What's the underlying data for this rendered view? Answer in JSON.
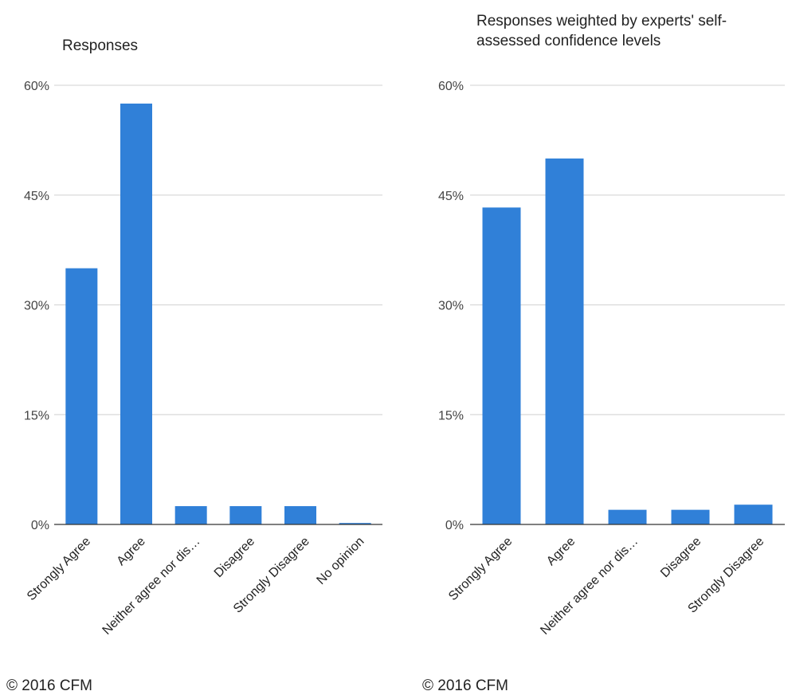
{
  "chart_data": [
    {
      "type": "bar",
      "title": "Responses",
      "title_lines": [
        "Responses"
      ],
      "categories": [
        "Strongly Agree",
        "Agree",
        "Neither agree nor dis…",
        "Disagree",
        "Strongly Disagree",
        "No opinion"
      ],
      "values": [
        35,
        57.5,
        2.5,
        2.5,
        2.5,
        0.2
      ],
      "y_ticks": [
        0,
        15,
        30,
        45,
        60
      ],
      "y_tick_labels": [
        "0%",
        "15%",
        "30%",
        "45%",
        "60%"
      ],
      "ylim": [
        0,
        60
      ],
      "grid": true,
      "bar_color": "#3080d8",
      "footer": "© 2016 CFM"
    },
    {
      "type": "bar",
      "title": "Responses weighted by experts' self-assessed confidence levels",
      "title_lines": [
        "Responses weighted by experts' self-",
        "assessed confidence levels"
      ],
      "categories": [
        "Strongly Agree",
        "Agree",
        "Neither agree nor dis…",
        "Disagree",
        "Strongly Disagree"
      ],
      "values": [
        43.3,
        50,
        2,
        2,
        2.7
      ],
      "y_ticks": [
        0,
        15,
        30,
        45,
        60
      ],
      "y_tick_labels": [
        "0%",
        "15%",
        "30%",
        "45%",
        "60%"
      ],
      "ylim": [
        0,
        60
      ],
      "grid": true,
      "bar_color": "#3080d8",
      "footer": "© 2016 CFM"
    }
  ]
}
